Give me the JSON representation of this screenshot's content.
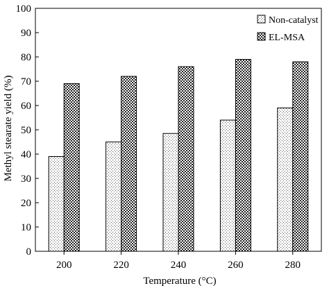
{
  "chart_data": {
    "type": "bar",
    "xlabel": "Temperature (°C)",
    "ylabel": "Methyl stearate yield (%)",
    "ylim": [
      0,
      100
    ],
    "yticks": [
      0,
      10,
      20,
      30,
      40,
      50,
      60,
      70,
      80,
      90,
      100
    ],
    "categories": [
      "200",
      "220",
      "240",
      "260",
      "280"
    ],
    "series": [
      {
        "name": "Non-catalyst",
        "values": [
          39,
          45,
          48.5,
          54,
          59
        ],
        "pattern": "dots"
      },
      {
        "name": "EL-MSA",
        "values": [
          69,
          72,
          76,
          79,
          78
        ],
        "pattern": "checker"
      }
    ],
    "legend_position": "top-right",
    "grid": false
  }
}
